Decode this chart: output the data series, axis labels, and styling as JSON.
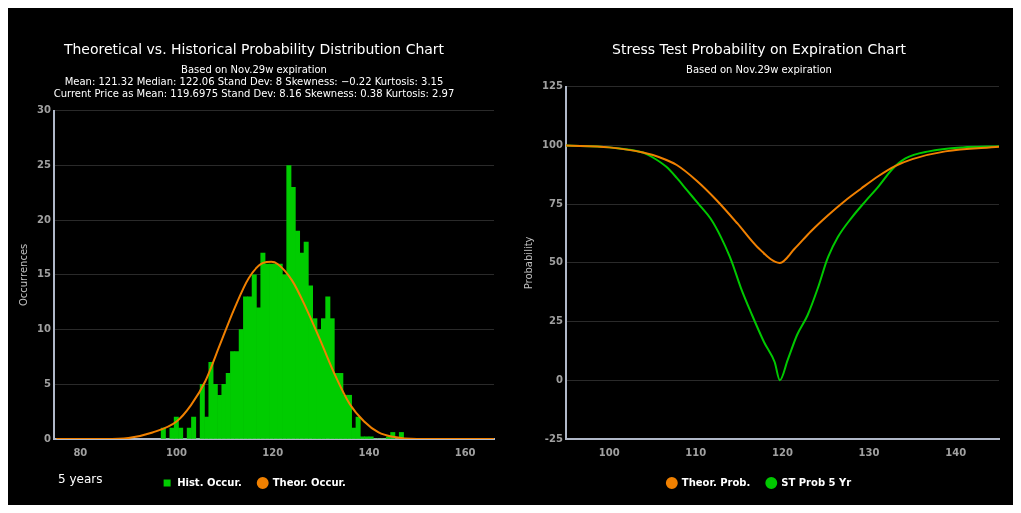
{
  "chart_data": [
    {
      "type": "histogram",
      "title": "Theoretical vs. Historical Probability Distribution Chart",
      "subtitle": "Based on Nov.29w expiration\nMean: 121.32 Median: 122.06 Stand Dev: 8 Skewness: −0.22 Kurtosis: 3.15\nCurrent Price as Mean: 119.6975 Stand Dev: 8.16 Skewness: 0.38 Kurtosis: 2.97",
      "ylabel": "Occurrences",
      "annotations": [
        "5 years"
      ],
      "bins": [
        96.8,
        97.7,
        98.6,
        99.5,
        100.4,
        101.3,
        102.2,
        103.1,
        104.0,
        104.9,
        105.8,
        106.7,
        107.6,
        108.5,
        109.4,
        110.3,
        111.2,
        112.1,
        113.0,
        113.9,
        114.8,
        115.7,
        116.6,
        117.5,
        118.4,
        119.3,
        120.2,
        121.1,
        122.0,
        122.9,
        123.8,
        124.7,
        125.6,
        126.5,
        127.4,
        128.3,
        129.2,
        130.1,
        131.0,
        131.9,
        132.8,
        133.7,
        134.6,
        135.5,
        136.4,
        137.3,
        138.2,
        139.1,
        140.0,
        140.9,
        141.8,
        142.7,
        143.6,
        144.5,
        145.4,
        146.3,
        147.2
      ],
      "series": [
        {
          "name": "Hist. Occur.",
          "type": "histogram",
          "color": "#00cc00",
          "values": [
            1,
            0,
            1,
            2,
            1,
            0,
            1,
            2,
            0,
            5,
            2,
            7,
            5,
            4,
            5,
            6,
            8,
            8,
            10,
            13,
            13,
            15,
            12,
            17,
            16,
            16,
            16,
            16,
            15,
            25,
            23,
            19,
            17,
            18,
            14,
            11,
            10,
            11,
            13,
            11,
            6,
            6,
            4,
            4,
            1,
            2,
            0.2,
            0.2,
            0.2,
            0,
            0,
            0,
            0.2,
            0.6,
            0,
            0.6
          ]
        },
        {
          "name": "Theor. Occur.",
          "type": "line",
          "color": "#f08000",
          "x": [
            75,
            85,
            90,
            95,
            100,
            103,
            106,
            109,
            112,
            115,
            118,
            119.7,
            121,
            124,
            127,
            130,
            133,
            136,
            139,
            142,
            145,
            150,
            155,
            166
          ],
          "values": [
            0,
            0,
            0.1,
            0.6,
            1.6,
            3.1,
            5.3,
            8.6,
            11.9,
            14.7,
            16.1,
            16.2,
            16.0,
            14.5,
            11.9,
            8.9,
            5.8,
            3.2,
            1.6,
            0.6,
            0.2,
            0,
            0,
            0
          ]
        }
      ],
      "xlim": [
        74.5,
        166
      ],
      "xticks": [
        80,
        100,
        120,
        140,
        160
      ],
      "ylim": [
        0,
        30
      ],
      "yticks": [
        0,
        5,
        10,
        15,
        20,
        25,
        30
      ],
      "grid": "y",
      "legend": "bottom",
      "marker": "none"
    },
    {
      "type": "line",
      "title": "Stress Test Probability on Expiration Chart",
      "subtitle": "Based on Nov.29w expiration",
      "ylabel": "Probability",
      "series": [
        {
          "name": "Theor. Prob.",
          "color": "#f08000",
          "x": [
            95,
            100,
            103.9,
            105.8,
            107.8,
            110.1,
            112.4,
            114.8,
            117.1,
            119.7,
            121.4,
            123.3,
            125.2,
            127.2,
            129.1,
            131.1,
            133,
            135,
            138.8,
            145
          ],
          "values": [
            100,
            99.2,
            97,
            95,
            91.7,
            85,
            76.7,
            66.8,
            56.8,
            50,
            56,
            63.5,
            70.1,
            76.4,
            81.7,
            87,
            91.2,
            94.2,
            97.5,
            99.5
          ]
        },
        {
          "name": "ST Prob 5 Yr",
          "color": "#00c800",
          "x": [
            95,
            100,
            103.9,
            105,
            106.6,
            107.8,
            109,
            110.5,
            111.7,
            112.9,
            114.1,
            115.2,
            116.4,
            117.9,
            119.1,
            119.7,
            120.6,
            121.7,
            122.9,
            124.1,
            125.2,
            126.4,
            128,
            129.5,
            131.1,
            132.7,
            134.2,
            136.9,
            140.8,
            145
          ],
          "values": [
            100,
            99.2,
            97,
            95,
            90.9,
            86.2,
            80.9,
            74.3,
            68.9,
            61,
            51,
            39.4,
            28.6,
            16.1,
            7.8,
            0,
            8.6,
            19.4,
            27.7,
            39.4,
            51.8,
            61,
            69.3,
            75.9,
            82.6,
            90,
            94.5,
            97.5,
            99.2,
            99.7
          ]
        }
      ],
      "xlim": [
        95,
        145
      ],
      "xticks": [
        100,
        110,
        120,
        130,
        140
      ],
      "ylim": [
        -25,
        125
      ],
      "yticks": [
        -25,
        0,
        25,
        50,
        75,
        100,
        125
      ],
      "grid": "y",
      "legend": "bottom",
      "marker": "none"
    }
  ]
}
